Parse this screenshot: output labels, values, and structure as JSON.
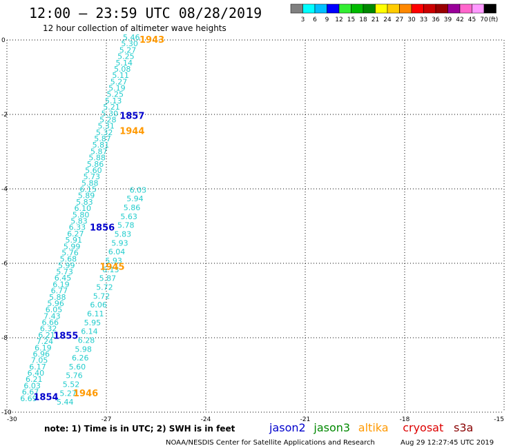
{
  "header": {
    "title": "12:00 – 23:59 UTC 08/28/2019",
    "subtitle": "12 hour collection of altimeter wave heights"
  },
  "colorbar": {
    "labels": [
      "3",
      "6",
      "9",
      "12",
      "15",
      "18",
      "21",
      "24",
      "27",
      "30",
      "33",
      "36",
      "39",
      "42",
      "45",
      "70",
      "(ft)"
    ],
    "colors": [
      "#808080",
      "#00ffff",
      "#00bfff",
      "#0000ff",
      "#33ee33",
      "#00bb00",
      "#008800",
      "#ffff00",
      "#ffcc00",
      "#ff8800",
      "#ff0000",
      "#cc0000",
      "#990000",
      "#990099",
      "#ff66cc",
      "#ff99ff",
      "#000000"
    ]
  },
  "footer": {
    "note": "note:  1) Time is in UTC; 2) SWH is in feet",
    "legend": [
      {
        "name": "jason2",
        "color": "#0000cc"
      },
      {
        "name": "jason3",
        "color": "#008800"
      },
      {
        "name": "altika",
        "color": "#ff9900"
      },
      {
        "name": "cryosat",
        "color": "#dd0000"
      },
      {
        "name": "s3a",
        "color": "#880000"
      }
    ],
    "credit": "NOAA/NESDIS Center for Satellite Applications and Research",
    "timestamp": "Aug 29 12:27:45 UTC 2019"
  },
  "chart_data": {
    "type": "scatter",
    "title": "12:00 – 23:59 UTC 08/28/2019",
    "subtitle": "12 hour collection of altimeter wave heights",
    "xlim": [
      -30,
      -15
    ],
    "ylim": [
      -10,
      0
    ],
    "x_ticks": [
      "-30",
      "-27",
      "-24",
      "-21",
      "-18",
      "-15"
    ],
    "y_ticks": [
      "0",
      "-2",
      "-4",
      "-6",
      "-8",
      "-10"
    ],
    "grid": "dotted",
    "value_color": "#22cccc",
    "track_a": {
      "lon": [
        -29.6,
        -26.5
      ],
      "lat": [
        -9.7,
        0.0
      ],
      "values": [
        "6.69",
        "6.67",
        "6.03",
        "6.21",
        "6.40",
        "6.17",
        "7.05",
        "6.96",
        "6.19",
        "7.24",
        "6.21",
        "6.32",
        "6.66",
        "7.43",
        "6.05",
        "5.96",
        "5.88",
        "6.77",
        "6.19",
        "6.45",
        "5.73",
        "5.99",
        "5.68",
        "5.76",
        "5.99",
        "5.91",
        "6.27",
        "6.33",
        "5.83",
        "5.80",
        "6.10",
        "5.83",
        "5.89",
        "6.15",
        "5.88",
        "5.73",
        "5.60",
        "5.86",
        "5.88",
        "5.87",
        "5.81",
        "5.87",
        "5.32",
        "5.31",
        "5.28",
        "5.30",
        "5.21",
        "5.13",
        "5.25",
        "5.19",
        "5.27",
        "5.11",
        "5.08",
        "5.14",
        "5.25",
        "5.27",
        "5.30",
        "5.46"
      ]
    },
    "track_b": {
      "lon": [
        -28.5,
        -26.3
      ],
      "lat": [
        -9.8,
        -4.1
      ],
      "values": [
        "5.44",
        "5.27",
        "5.52",
        "5.76",
        "5.60",
        "6.26",
        "5.98",
        "6.28",
        "6.14",
        "5.95",
        "6.11",
        "6.06",
        "5.72",
        "5.72",
        "5.87",
        "6.13",
        "5.93",
        "6.04",
        "5.93",
        "5.83",
        "5.78",
        "5.63",
        "5.86",
        "5.94",
        "6.03"
      ]
    },
    "time_labels": [
      {
        "text": "1943",
        "sat": "altika",
        "lon": -26.0,
        "lat": 0.0
      },
      {
        "text": "1857",
        "sat": "jason2",
        "lon": -26.6,
        "lat": -2.05
      },
      {
        "text": "1944",
        "sat": "altika",
        "lon": -26.6,
        "lat": -2.45
      },
      {
        "text": "1856",
        "sat": "jason2",
        "lon": -27.5,
        "lat": -5.05
      },
      {
        "text": "1945",
        "sat": "altika",
        "lon": -27.2,
        "lat": -6.1
      },
      {
        "text": "1855",
        "sat": "jason2",
        "lon": -28.6,
        "lat": -7.95
      },
      {
        "text": "1854",
        "sat": "jason2",
        "lon": -29.2,
        "lat": -9.6
      },
      {
        "text": "1946",
        "sat": "altika",
        "lon": -28.0,
        "lat": -9.5
      }
    ]
  }
}
